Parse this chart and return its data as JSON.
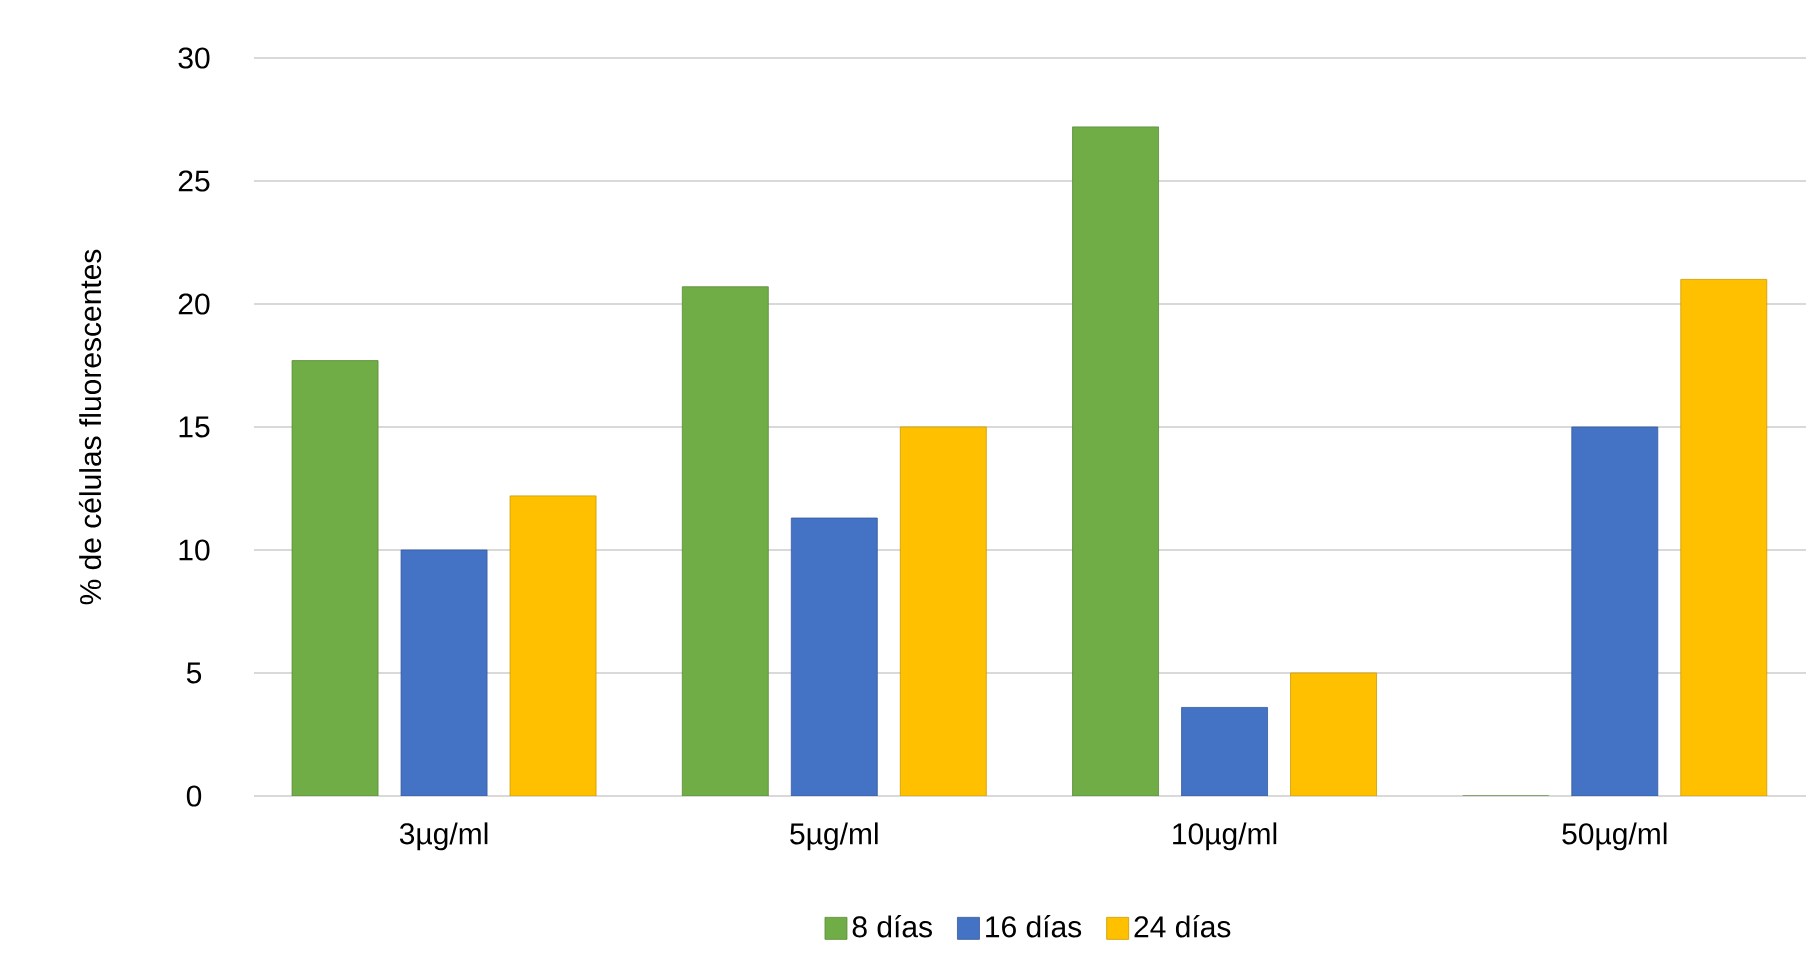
{
  "chart_data": {
    "type": "bar",
    "ylabel": "% de células fluorescentes",
    "categories": [
      "3µg/ml",
      "5µg/ml",
      "10µg/ml",
      "50µg/ml"
    ],
    "series": [
      {
        "name": "8 días",
        "color": "#70ad47",
        "values": [
          17.7,
          20.7,
          27.2,
          0
        ]
      },
      {
        "name": "16 días",
        "color": "#4472c4",
        "values": [
          10.0,
          11.3,
          3.6,
          15.0
        ]
      },
      {
        "name": "24 días",
        "color": "#ffc000",
        "values": [
          12.2,
          15.0,
          5.0,
          21.0
        ]
      }
    ],
    "ylim": [
      0,
      30
    ],
    "yticks": [
      0,
      5,
      10,
      15,
      20,
      25,
      30
    ],
    "grid": "y",
    "legend": "bottom"
  }
}
